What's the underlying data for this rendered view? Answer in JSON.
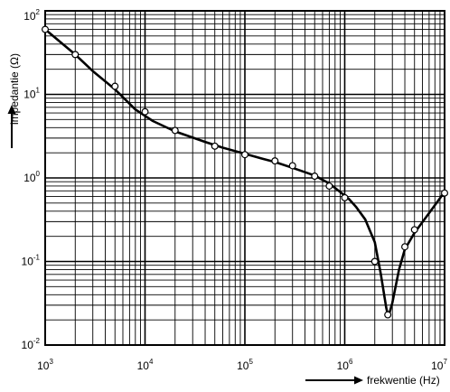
{
  "chart_data": {
    "type": "line",
    "xscale": "log",
    "yscale": "log",
    "xlim": [
      1000,
      10000000
    ],
    "ylim": [
      0.01,
      100
    ],
    "grid": true,
    "xlabel": "frekwentie (Hz)",
    "ylabel": "impedantie (Ω)",
    "x_ticks": [
      {
        "base": "10",
        "exp": "3"
      },
      {
        "base": "10",
        "exp": "4"
      },
      {
        "base": "10",
        "exp": "5"
      },
      {
        "base": "10",
        "exp": "6"
      },
      {
        "base": "10",
        "exp": "7"
      }
    ],
    "y_ticks": [
      {
        "base": "10",
        "exp": "-2"
      },
      {
        "base": "10",
        "exp": "-1"
      },
      {
        "base": "10",
        "exp": "0"
      },
      {
        "base": "10",
        "exp": "1"
      },
      {
        "base": "10",
        "exp": "2"
      }
    ],
    "curve": {
      "x": [
        1000,
        2000,
        3000,
        5000,
        8000,
        12000,
        20000,
        40000,
        60000,
        100000,
        150000,
        200000,
        300000,
        500000,
        700000,
        900000,
        1100000,
        1300000,
        1600000,
        2000000,
        2300000,
        2600000,
        2700000,
        2800000,
        3000000,
        3500000,
        4000000,
        5000000,
        7000000,
        10000000
      ],
      "y": [
        60,
        30,
        19,
        11.5,
        6.6,
        4.8,
        3.6,
        2.7,
        2.3,
        1.95,
        1.7,
        1.55,
        1.32,
        1.07,
        0.86,
        0.68,
        0.56,
        0.45,
        0.32,
        0.17,
        0.07,
        0.028,
        0.023,
        0.024,
        0.032,
        0.08,
        0.14,
        0.22,
        0.38,
        0.68
      ]
    },
    "points": {
      "x": [
        1000,
        2000,
        5000,
        10000,
        20000,
        50000,
        100000,
        200000,
        300000,
        500000,
        700000,
        1000000,
        2000000,
        2700000,
        4000000,
        5000000,
        10000000
      ],
      "y": [
        60,
        30,
        12.5,
        6.2,
        3.7,
        2.4,
        1.9,
        1.6,
        1.4,
        1.05,
        0.8,
        0.58,
        0.1,
        0.023,
        0.15,
        0.24,
        0.66
      ]
    }
  }
}
